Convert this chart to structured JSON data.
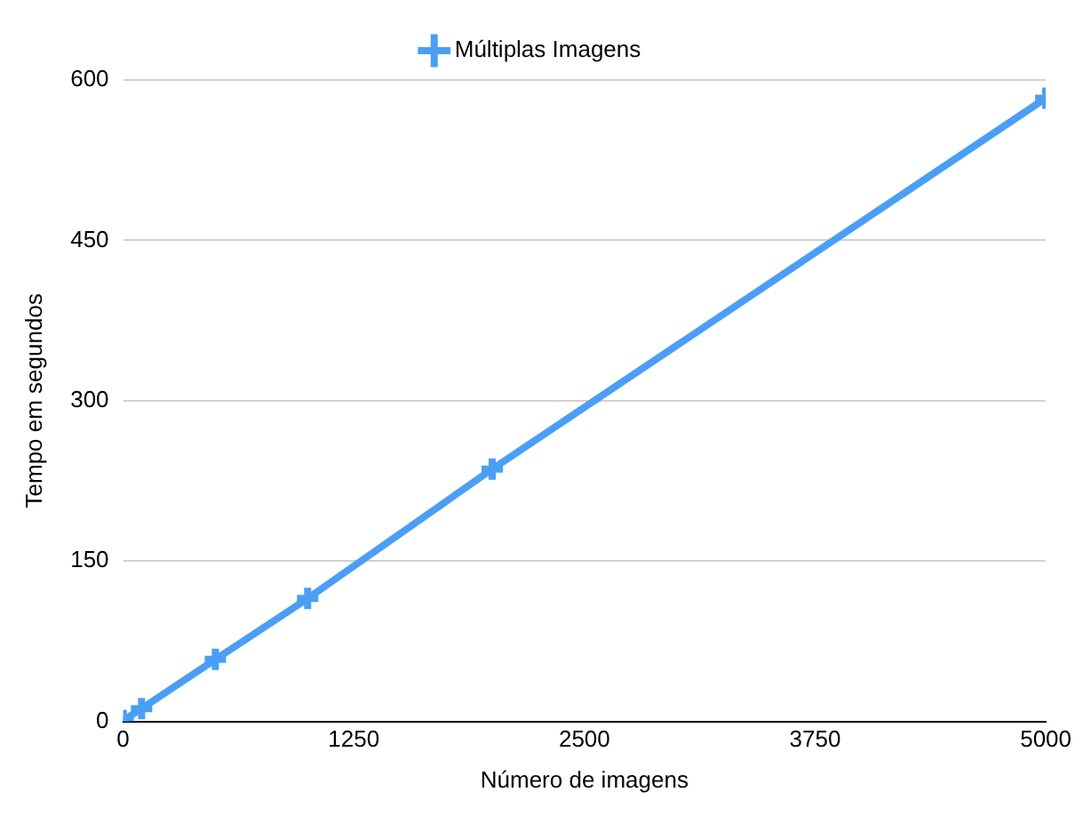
{
  "chart_data": {
    "type": "line",
    "xlabel": "Número de imagens",
    "ylabel": "Tempo em segundos",
    "x": [
      1,
      100,
      500,
      1000,
      2000,
      5000
    ],
    "series": [
      {
        "name": "Múltiplas Imagens",
        "color": "#4a9ff5",
        "values": [
          1,
          12,
          58,
          115,
          236,
          583
        ]
      }
    ],
    "xlim": [
      0,
      5000
    ],
    "xticks": [
      0,
      1250,
      2500,
      3750,
      5000
    ],
    "ylim": [
      0,
      600
    ],
    "yticks": [
      0,
      150,
      300,
      450,
      600
    ],
    "grid": "y",
    "legend": "top",
    "marker": "cross",
    "line_style": "solid"
  }
}
